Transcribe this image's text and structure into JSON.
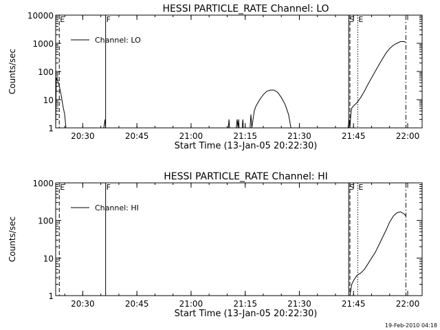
{
  "footer_stamp": "19-Feb-2010 04:18",
  "chart_data": [
    {
      "type": "line",
      "title": "HESSI PARTICLE_RATE Channel: LO",
      "xlabel": "Start Time (13-Jan-05 20:22:30)",
      "ylabel": "Counts/sec",
      "yscale": "log",
      "xlim": [
        "20:22:30",
        "22:04:00"
      ],
      "ylim": [
        1,
        10000
      ],
      "x_ticks": [
        "20:30",
        "20:45",
        "21:00",
        "21:15",
        "21:30",
        "21:45",
        "22:00"
      ],
      "y_ticks": [
        "1",
        "10",
        "100",
        "1000",
        "10000"
      ],
      "legend": {
        "position": "top-left",
        "entries": [
          "Channel: LO"
        ]
      },
      "markers": [
        {
          "label": "E",
          "time": "20:23:30",
          "style": "dashed"
        },
        {
          "label": "F",
          "time": "20:36:20",
          "style": "solid"
        },
        {
          "label": "S",
          "time": "21:43:40",
          "style": "solid"
        },
        {
          "label": "",
          "time": "21:44:00",
          "style": "dashed"
        },
        {
          "label": "E",
          "time": "21:46:10",
          "style": "dotted"
        },
        {
          "label": "",
          "time": "21:59:30",
          "style": "dashdot"
        }
      ],
      "series": [
        {
          "segments": [
            [
              [
                "20:22:30",
                1
              ],
              [
                "20:22:40",
                60
              ],
              [
                "20:23:00",
                50
              ],
              [
                "20:23:30",
                30
              ],
              [
                "20:24:00",
                15
              ],
              [
                "20:24:30",
                6
              ],
              [
                "20:25:00",
                3
              ],
              [
                "20:25:20",
                1
              ]
            ],
            [
              [
                "20:35:50",
                1
              ],
              [
                "20:36:10",
                2
              ],
              [
                "20:36:20",
                1
              ]
            ],
            [
              [
                "21:10:20",
                1
              ],
              [
                "21:10:30",
                2
              ],
              [
                "21:10:40",
                1
              ]
            ],
            [
              [
                "21:12:30",
                1
              ],
              [
                "21:12:45",
                2
              ],
              [
                "21:13:00",
                1
              ],
              [
                "21:13:10",
                2
              ],
              [
                "21:13:20",
                1
              ]
            ],
            [
              [
                "21:14:10",
                1
              ],
              [
                "21:14:20",
                2
              ],
              [
                "21:14:30",
                1
              ]
            ],
            [
              [
                "21:16:20",
                1
              ],
              [
                "21:16:35",
                3
              ],
              [
                "21:16:50",
                1
              ],
              [
                "21:17:10",
                2
              ],
              [
                "21:17:30",
                4
              ],
              [
                "21:18:00",
                6
              ],
              [
                "21:19:00",
                10
              ],
              [
                "21:20:00",
                15
              ],
              [
                "21:21:00",
                20
              ],
              [
                "21:22:00",
                22
              ],
              [
                "21:23:00",
                22
              ],
              [
                "21:24:00",
                18
              ],
              [
                "21:25:00",
                12
              ],
              [
                "21:26:00",
                7
              ],
              [
                "21:27:00",
                3
              ],
              [
                "21:27:40",
                1
              ]
            ],
            [
              [
                "21:43:30",
                1
              ],
              [
                "21:43:45",
                2
              ],
              [
                "21:44:00",
                1
              ],
              [
                "21:44:15",
                3
              ],
              [
                "21:44:30",
                5
              ],
              [
                "21:45:00",
                6
              ],
              [
                "21:46:00",
                8
              ],
              [
                "21:47:00",
                12
              ],
              [
                "21:48:00",
                20
              ],
              [
                "21:49:00",
                35
              ],
              [
                "21:50:00",
                60
              ],
              [
                "21:51:00",
                100
              ],
              [
                "21:52:00",
                170
              ],
              [
                "21:53:00",
                280
              ],
              [
                "21:54:00",
                450
              ],
              [
                "21:55:00",
                650
              ],
              [
                "21:56:00",
                850
              ],
              [
                "21:57:00",
                1000
              ],
              [
                "21:58:00",
                1150
              ],
              [
                "21:59:00",
                1150
              ],
              [
                "21:59:30",
                1100
              ]
            ]
          ]
        }
      ]
    },
    {
      "type": "line",
      "title": "HESSI PARTICLE_RATE Channel: HI",
      "xlabel": "Start Time (13-Jan-05 20:22:30)",
      "ylabel": "Counts/sec",
      "yscale": "log",
      "xlim": [
        "20:22:30",
        "22:04:00"
      ],
      "ylim": [
        1,
        1000
      ],
      "x_ticks": [
        "20:30",
        "20:45",
        "21:00",
        "21:15",
        "21:30",
        "21:45",
        "22:00"
      ],
      "y_ticks": [
        "1",
        "10",
        "100",
        "1000"
      ],
      "legend": {
        "position": "top-left",
        "entries": [
          "Channel: HI"
        ]
      },
      "markers": [
        {
          "label": "E",
          "time": "20:23:30",
          "style": "dashed"
        },
        {
          "label": "F",
          "time": "20:36:20",
          "style": "solid"
        },
        {
          "label": "S",
          "time": "21:43:40",
          "style": "solid"
        },
        {
          "label": "",
          "time": "21:44:00",
          "style": "dashed"
        },
        {
          "label": "E",
          "time": "21:46:10",
          "style": "dotted"
        },
        {
          "label": "",
          "time": "21:59:30",
          "style": "dashdot"
        }
      ],
      "series": [
        {
          "segments": [
            [
              [
                "21:44:00",
                1
              ],
              [
                "21:44:30",
                2
              ],
              [
                "21:45:00",
                2.5
              ],
              [
                "21:46:00",
                3.5
              ],
              [
                "21:47:00",
                4
              ],
              [
                "21:48:00",
                5
              ],
              [
                "21:49:00",
                7
              ],
              [
                "21:50:00",
                10
              ],
              [
                "21:51:00",
                14
              ],
              [
                "21:52:00",
                22
              ],
              [
                "21:53:00",
                35
              ],
              [
                "21:54:00",
                55
              ],
              [
                "21:55:00",
                90
              ],
              [
                "21:56:00",
                130
              ],
              [
                "21:57:00",
                160
              ],
              [
                "21:58:00",
                170
              ],
              [
                "21:59:00",
                150
              ],
              [
                "21:59:30",
                130
              ]
            ]
          ]
        }
      ]
    }
  ]
}
